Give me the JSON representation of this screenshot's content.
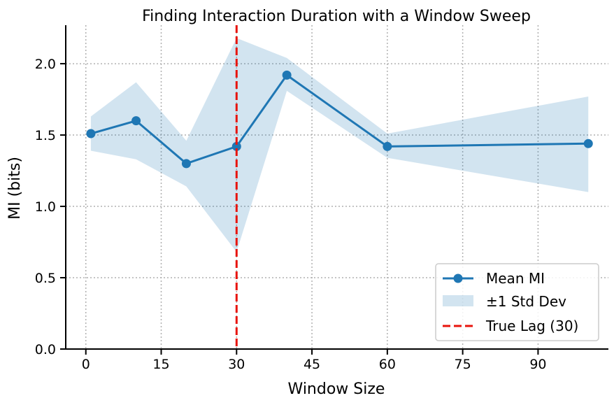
{
  "chart_data": {
    "type": "line",
    "title": "Finding Interaction Duration with a Window Sweep",
    "xlabel": "Window Size",
    "ylabel": "MI (bits)",
    "xlim": [
      -4,
      104
    ],
    "ylim": [
      0,
      2.27
    ],
    "xticks": [
      0,
      15,
      30,
      45,
      60,
      75,
      90
    ],
    "yticks": [
      0.0,
      0.5,
      1.0,
      1.5,
      2.0
    ],
    "ytick_labels": [
      "0.0",
      "0.5",
      "1.0",
      "1.5",
      "2.0"
    ],
    "grid": true,
    "legend_position": "lower-right",
    "x": [
      1,
      10,
      20,
      30,
      40,
      60,
      100
    ],
    "series": [
      {
        "name": "Mean MI",
        "values": [
          1.51,
          1.6,
          1.3,
          1.42,
          1.92,
          1.42,
          1.44
        ],
        "color": "#1f77b4"
      }
    ],
    "band": {
      "name": "±1 Std Dev",
      "lower": [
        1.39,
        1.33,
        1.14,
        0.68,
        1.81,
        1.34,
        1.1
      ],
      "upper": [
        1.63,
        1.87,
        1.46,
        2.18,
        2.04,
        1.51,
        1.77
      ],
      "color": "#1f77b4",
      "opacity": 0.2
    },
    "vline": {
      "name": "True Lag (30)",
      "x": 30,
      "color": "#e8140c"
    }
  }
}
